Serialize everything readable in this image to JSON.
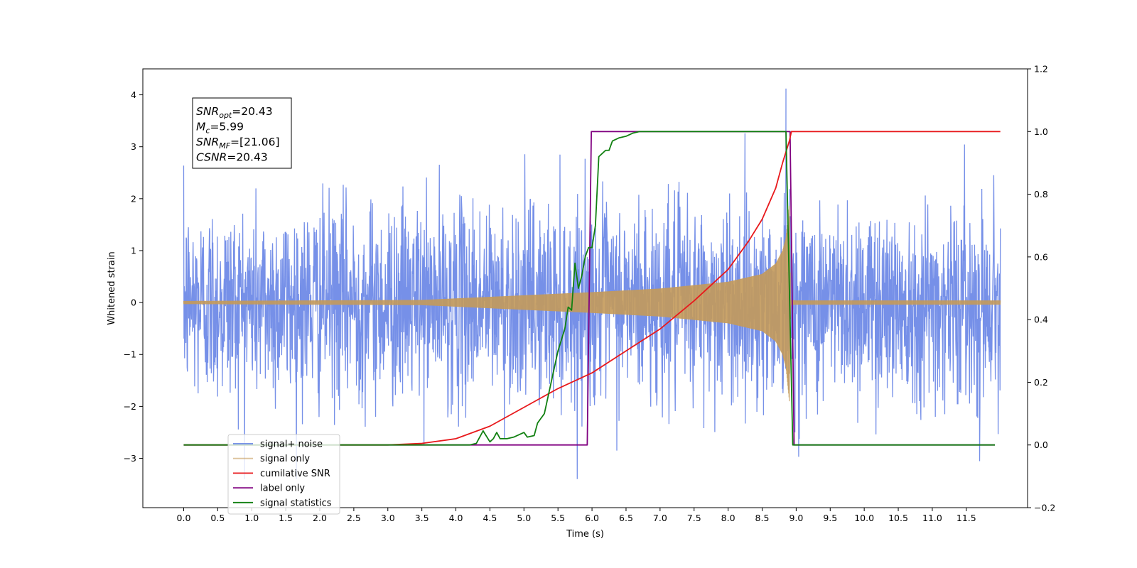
{
  "chart_data": {
    "type": "line",
    "xlabel": "Time (s)",
    "ylabel": "Whitened strain",
    "xlim": [
      -0.6,
      12.4
    ],
    "ylim_left": [
      -3.95,
      4.5
    ],
    "ylim_right": [
      -0.2,
      1.2
    ],
    "x_ticks": [
      0.0,
      0.5,
      1.0,
      1.5,
      2.0,
      2.5,
      3.0,
      3.5,
      4.0,
      4.5,
      5.0,
      5.5,
      6.0,
      6.5,
      7.0,
      7.5,
      8.0,
      8.5,
      9.0,
      9.5,
      10.0,
      10.5,
      11.0,
      11.5
    ],
    "x_tick_labels": [
      "0.0",
      "0.5",
      "1.0",
      "1.5",
      "2.0",
      "2.5",
      "3.0",
      "3.5",
      "4.0",
      "4.5",
      "5.0",
      "5.5",
      "6.0",
      "6.5",
      "7.0",
      "7.5",
      "8.0",
      "8.5",
      "9.0",
      "9.5",
      "10.0",
      "10.5",
      "11.0",
      "11.5"
    ],
    "y_left_ticks": [
      -3,
      -2,
      -1,
      0,
      1,
      2,
      3,
      4
    ],
    "y_left_tick_labels": [
      "−3",
      "−2",
      "−1",
      "0",
      "1",
      "2",
      "3",
      "4"
    ],
    "y_right_ticks": [
      -0.2,
      0.0,
      0.2,
      0.4,
      0.6,
      0.8,
      1.0,
      1.2
    ],
    "y_right_tick_labels": [
      "−0.2",
      "0.0",
      "0.2",
      "0.4",
      "0.6",
      "0.8",
      "1.0",
      "1.2"
    ],
    "legend_position": "lower-left",
    "series": [
      {
        "name": "signal+ noise",
        "color": "#6a87e6",
        "axis": "left",
        "kind": "noise",
        "x_range": [
          0.0,
          12.0
        ],
        "noise_amplitude": 2.6,
        "peak": [
          8.85,
          4.12
        ]
      },
      {
        "name": "signal only",
        "color": "#c49a5a",
        "axis": "left",
        "kind": "chirp-envelope",
        "envelope": {
          "x": [
            0.0,
            3.5,
            4.0,
            5.0,
            6.0,
            7.0,
            8.0,
            8.5,
            8.7,
            8.8,
            8.85,
            8.9,
            8.92,
            9.0,
            12.0
          ],
          "y": [
            0.03,
            0.05,
            0.08,
            0.14,
            0.2,
            0.27,
            0.4,
            0.55,
            0.75,
            1.0,
            1.25,
            1.9,
            0.05,
            0.04,
            0.04
          ]
        }
      },
      {
        "name": "cumilative SNR",
        "color": "#e8191c",
        "axis": "right",
        "x": [
          0.0,
          3.0,
          3.5,
          4.0,
          4.5,
          5.0,
          5.5,
          6.0,
          6.5,
          7.0,
          7.5,
          8.0,
          8.3,
          8.5,
          8.7,
          8.8,
          8.9,
          8.93,
          12.0
        ],
        "y": [
          0.0,
          0.0,
          0.005,
          0.02,
          0.06,
          0.12,
          0.18,
          0.23,
          0.3,
          0.37,
          0.46,
          0.56,
          0.65,
          0.72,
          0.82,
          0.9,
          0.97,
          1.0,
          1.0
        ]
      },
      {
        "name": "label only",
        "color": "#800080",
        "axis": "right",
        "x": [
          0.0,
          5.93,
          5.99,
          8.91,
          8.97,
          11.92
        ],
        "y": [
          0.0,
          0.0,
          1.0,
          1.0,
          0.0,
          0.0
        ]
      },
      {
        "name": "signal statistics",
        "color": "#118011",
        "axis": "right",
        "x": [
          0.0,
          4.2,
          4.3,
          4.4,
          4.5,
          4.55,
          4.6,
          4.65,
          4.75,
          4.85,
          5.0,
          5.05,
          5.15,
          5.2,
          5.3,
          5.4,
          5.5,
          5.6,
          5.65,
          5.7,
          5.75,
          5.8,
          5.85,
          5.9,
          5.95,
          6.0,
          6.05,
          6.1,
          6.15,
          6.2,
          6.25,
          6.3,
          6.35,
          6.4,
          6.5,
          6.6,
          6.7,
          6.8,
          7.0,
          8.85,
          8.9,
          8.95,
          9.0,
          11.92
        ],
        "y": [
          0.0,
          0.0,
          0.005,
          0.045,
          0.01,
          0.02,
          0.04,
          0.02,
          0.02,
          0.025,
          0.04,
          0.025,
          0.03,
          0.07,
          0.1,
          0.2,
          0.3,
          0.37,
          0.44,
          0.43,
          0.58,
          0.5,
          0.54,
          0.6,
          0.63,
          0.63,
          0.7,
          0.92,
          0.93,
          0.94,
          0.94,
          0.97,
          0.975,
          0.98,
          0.985,
          0.995,
          1.0,
          1.0,
          1.0,
          1.0,
          0.5,
          0.0,
          0.0,
          0.0
        ]
      }
    ],
    "annotation": {
      "lines": [
        {
          "main": "SNR",
          "sub": "opt",
          "rest": "=20.43"
        },
        {
          "main": "M",
          "sub": "c",
          "rest": "=5.99"
        },
        {
          "main": "SNR",
          "sub": "MF",
          "rest": "=[21.06]"
        },
        {
          "main": "CSNR",
          "sub": "",
          "rest": "=20.43"
        }
      ]
    }
  }
}
